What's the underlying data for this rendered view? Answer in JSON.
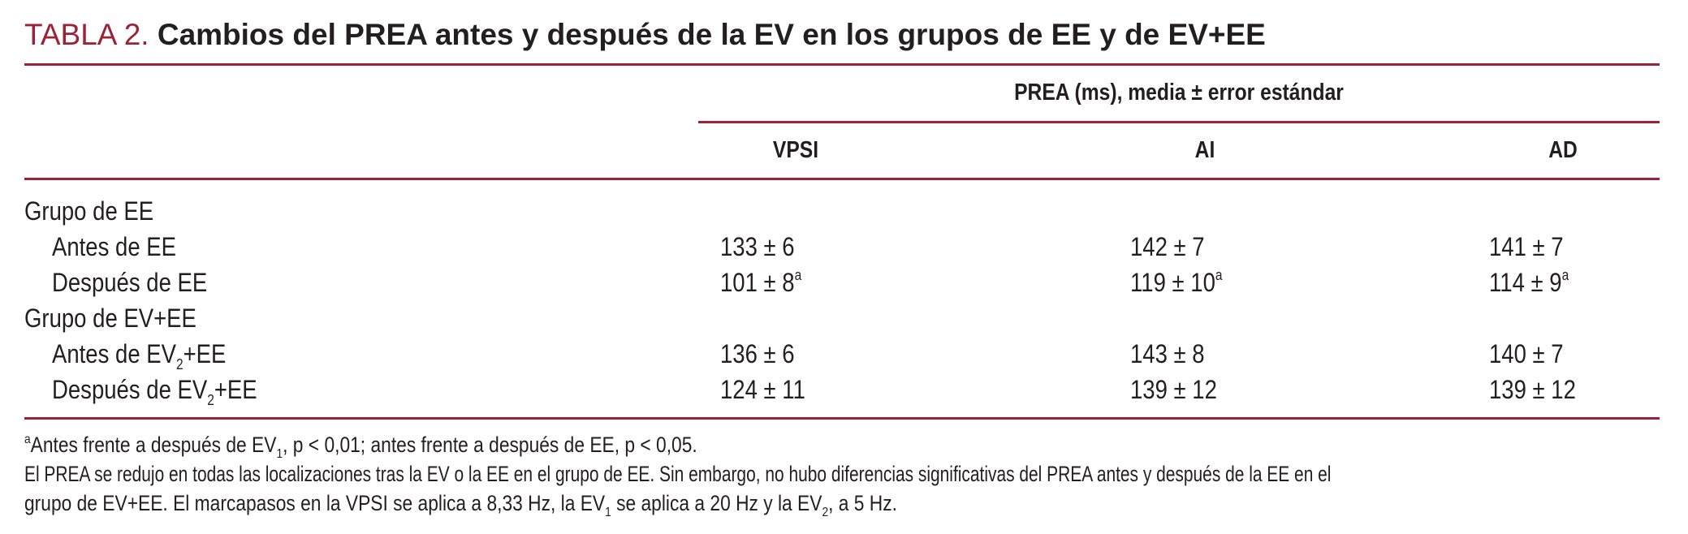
{
  "title": {
    "label": "TABLA 2.",
    "text": "Cambios del PREA antes y después de la EV en los grupos de EE y de EV+EE"
  },
  "table": {
    "spanner_header": "PREA (ms), media ± error estándar",
    "columns": [
      "VPSI",
      "AI",
      "AD"
    ],
    "groups": [
      {
        "label": "Grupo de EE",
        "rows": [
          {
            "label_main": "Antes de EE",
            "label_sub": "",
            "label_tail": "",
            "values": [
              {
                "value": "133 ± 6",
                "mark": ""
              },
              {
                "value": "142 ± 7",
                "mark": ""
              },
              {
                "value": "141 ± 7",
                "mark": ""
              }
            ]
          },
          {
            "label_main": "Después de EE",
            "label_sub": "",
            "label_tail": "",
            "values": [
              {
                "value": "101 ± 8",
                "mark": "a"
              },
              {
                "value": "119 ± 10",
                "mark": "a"
              },
              {
                "value": "114 ± 9",
                "mark": "a"
              }
            ]
          }
        ]
      },
      {
        "label": "Grupo de EV+EE",
        "rows": [
          {
            "label_main": "Antes de EV",
            "label_sub": "2",
            "label_tail": "+EE",
            "values": [
              {
                "value": "136 ± 6",
                "mark": ""
              },
              {
                "value": "143 ± 8",
                "mark": ""
              },
              {
                "value": "140 ± 7",
                "mark": ""
              }
            ]
          },
          {
            "label_main": "Después de EV",
            "label_sub": "2",
            "label_tail": "+EE",
            "values": [
              {
                "value": "124 ± 11",
                "mark": ""
              },
              {
                "value": "139 ± 12",
                "mark": ""
              },
              {
                "value": "139 ± 12",
                "mark": ""
              }
            ]
          }
        ]
      }
    ]
  },
  "footnotes": {
    "a_mark": "a",
    "a_text_1": "Antes frente a después de EV",
    "a_sub": "1",
    "a_text_2": ", p < 0,01; antes frente a después de EE, p < 0,05.",
    "note_line_1": "El PREA se redujo en todas las localizaciones tras la EV o la EE en el grupo de EE. Sin embargo, no hubo diferencias significativas del PREA antes y después de la EE en el",
    "note_line_2_a": "grupo de EV+EE. El marcapasos en la VPSI se aplica a 8,33 Hz, la EV",
    "note_line_2_sub1": "1",
    "note_line_2_b": " se aplica a 20 Hz y la EV",
    "note_line_2_sub2": "2",
    "note_line_2_c": ", a 5 Hz."
  },
  "colors": {
    "accent": "#9b2335",
    "text": "#231f20"
  }
}
